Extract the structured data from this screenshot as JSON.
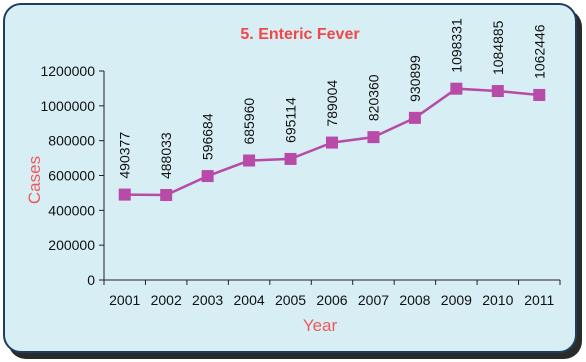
{
  "chart_data": {
    "type": "line",
    "title": "5. Enteric Fever",
    "xlabel": "Year",
    "ylabel": "Cases",
    "categories": [
      "2001",
      "2002",
      "2003",
      "2004",
      "2005",
      "2006",
      "2007",
      "2008",
      "2009",
      "2010",
      "2011"
    ],
    "values": [
      490377,
      488033,
      596684,
      685960,
      695114,
      789004,
      820360,
      930899,
      1098331,
      1084885,
      1062446
    ],
    "value_labels": [
      "490377",
      "488033",
      "596684",
      "685960",
      "695114",
      "789004",
      "820360",
      "930899",
      "1098331",
      "1084885",
      "1062446"
    ],
    "yticks": [
      "0",
      "200000",
      "400000",
      "600000",
      "800000",
      "1000000",
      "1200000"
    ],
    "ylim": [
      0,
      1200000
    ],
    "grid": false,
    "legend": "none",
    "colors": {
      "series": "#b84aa8",
      "title": "#f04848",
      "axis_title": "#f05a5a",
      "background": "#d6eef4"
    }
  }
}
